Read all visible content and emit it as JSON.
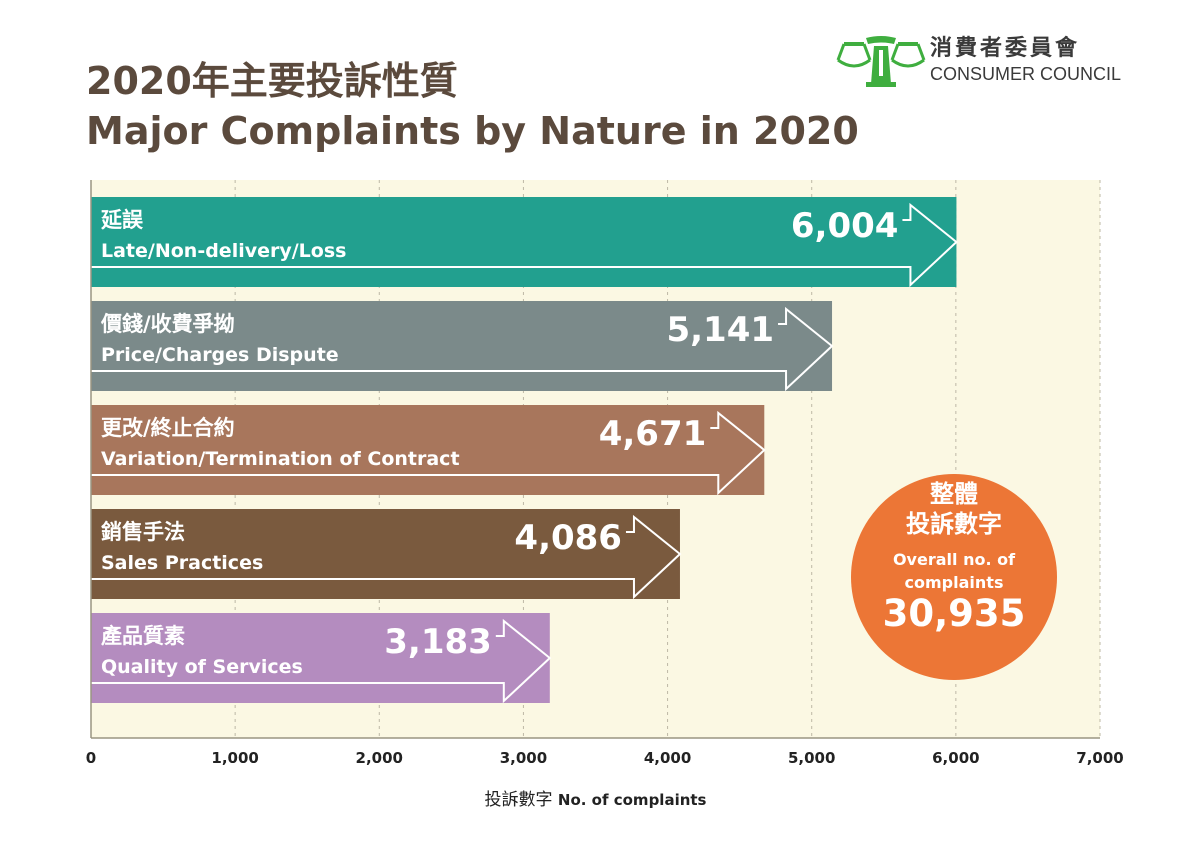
{
  "header": {
    "title_zh": "2020年主要投訴性質",
    "title_en": "Major Complaints by Nature in 2020"
  },
  "logo": {
    "name_zh": "消費者委員會",
    "name_en": "CONSUMER COUNCIL",
    "color": "#3fae3f"
  },
  "total_badge": {
    "label_zh_line1": "整體",
    "label_zh_line2": "投訴數字",
    "label_en": "Overall no. of complaints",
    "value": "30,935",
    "color": "#ec7636"
  },
  "colors": {
    "plot_background": "#fbf8e3",
    "gridline": "#bdb8a6"
  },
  "chart_data": {
    "type": "bar",
    "orientation": "horizontal",
    "title": "Major Complaints by Nature in 2020",
    "xlabel_zh": "投訴數字",
    "xlabel_en": "No. of complaints",
    "xlim": [
      0,
      7000
    ],
    "xticks": [
      0,
      1000,
      2000,
      3000,
      4000,
      5000,
      6000,
      7000
    ],
    "xtick_labels": [
      "0",
      "1,000",
      "2,000",
      "3,000",
      "4,000",
      "5,000",
      "6,000",
      "7,000"
    ],
    "grid": true,
    "bars": [
      {
        "label_zh": "延誤",
        "label_en": "Late/Non-delivery/Loss",
        "value": 6004,
        "value_label": "6,004",
        "color": "#22a08f"
      },
      {
        "label_zh": "價錢/收費爭拗",
        "label_en": "Price/Charges Dispute",
        "value": 5141,
        "value_label": "5,141",
        "color": "#7b8a8a"
      },
      {
        "label_zh": "更改/終止合約",
        "label_en": "Variation/Termination of Contract",
        "value": 4671,
        "value_label": "4,671",
        "color": "#a8765c"
      },
      {
        "label_zh": "銷售手法",
        "label_en": "Sales Practices",
        "value": 4086,
        "value_label": "4,086",
        "color": "#7a5a3e"
      },
      {
        "label_zh": "產品質素",
        "label_en": "Quality of Services",
        "value": 3183,
        "value_label": "3,183",
        "color": "#b48cbf"
      }
    ]
  }
}
